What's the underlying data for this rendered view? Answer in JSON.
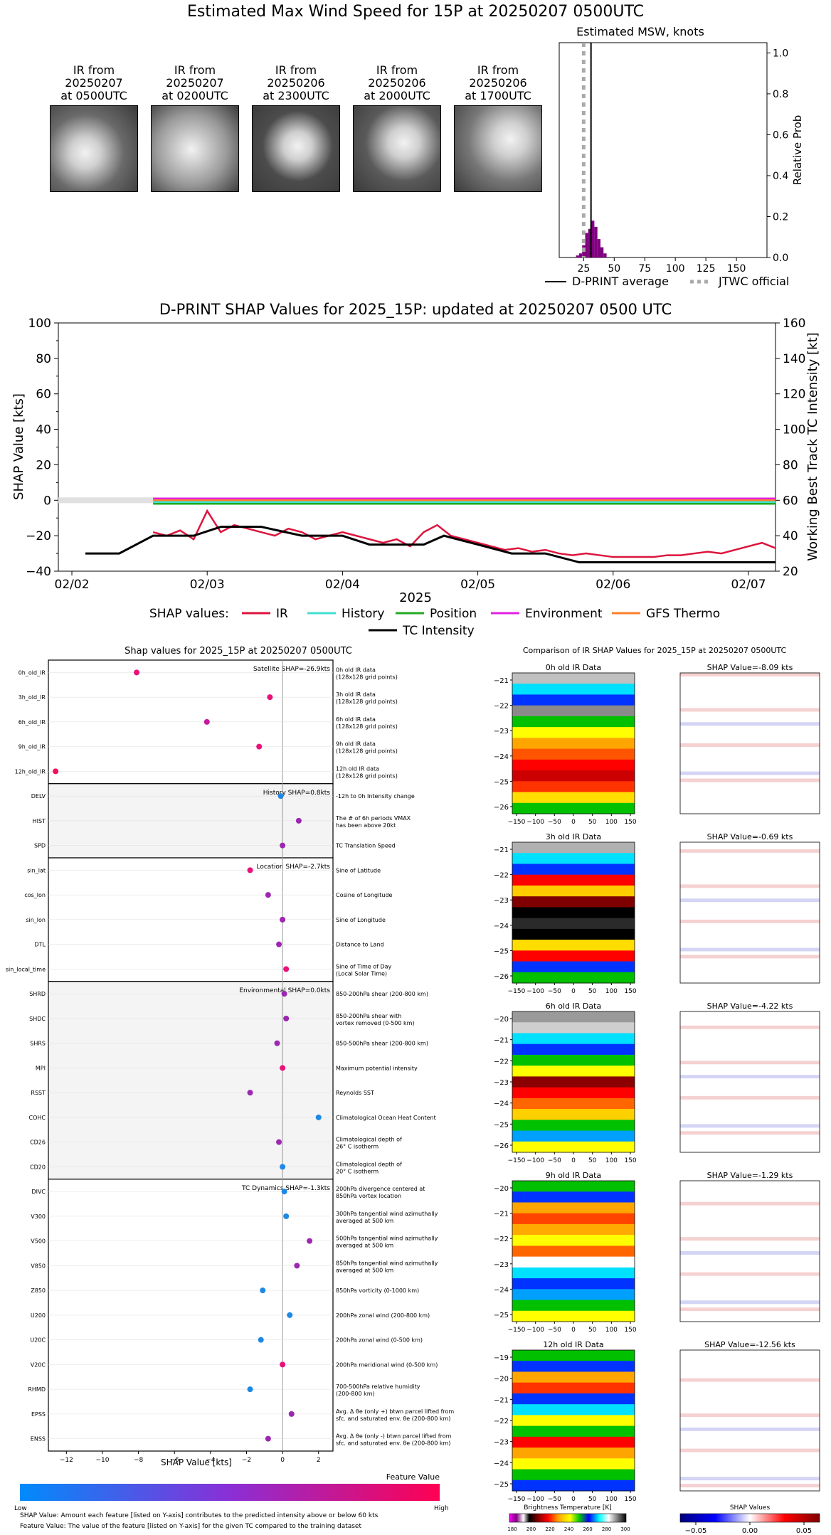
{
  "main_title": "Estimated Max Wind Speed for 15P at 20250207 0500UTC",
  "ir_thumbnails": [
    {
      "label": "IR from\n20250207\nat 0500UTC",
      "l1": "IR from",
      "l2": "20250207",
      "l3": "at 0500UTC"
    },
    {
      "l1": "IR from",
      "l2": "20250207",
      "l3": "at 0200UTC"
    },
    {
      "l1": "IR from",
      "l2": "20250206",
      "l3": "at 2300UTC"
    },
    {
      "l1": "IR from",
      "l2": "20250206",
      "l3": "at 2000UTC"
    },
    {
      "l1": "IR from",
      "l2": "20250206",
      "l3": "at 1700UTC"
    }
  ],
  "msw_hist": {
    "title": "Estimated MSW, knots",
    "ylabel": "Relative Prob",
    "xticks": [
      "25",
      "50",
      "75",
      "100",
      "125",
      "150"
    ],
    "yticks": [
      "0.0",
      "0.2",
      "0.4",
      "0.6",
      "0.8",
      "1.0"
    ],
    "legend_dprint": "D-PRINT average",
    "legend_jtwc": "JTWC official",
    "bar_color": "#800080"
  },
  "shap_ts": {
    "title": "D-PRINT SHAP Values for 2025_15P: updated at 20250207 0500 UTC",
    "ylabel_left": "SHAP Value [kts]",
    "ylabel_right": "Working Best Track TC Intensity [kt]",
    "xlabel": "2025",
    "xticks": [
      "02/02",
      "02/03",
      "02/04",
      "02/05",
      "02/06",
      "02/07"
    ],
    "yticks_left": [
      "100",
      "80",
      "60",
      "40",
      "20",
      "0",
      "−20",
      "−40"
    ],
    "yticks_right": [
      "160",
      "140",
      "120",
      "100",
      "80",
      "60",
      "40",
      "20"
    ],
    "legend_label": "SHAP values:",
    "legend": [
      {
        "name": "IR",
        "color": "#dc143c"
      },
      {
        "name": "History",
        "color": "#40e0d0"
      },
      {
        "name": "Position",
        "color": "#22aa22"
      },
      {
        "name": "Environment",
        "color": "#e020e0"
      },
      {
        "name": "GFS Thermo",
        "color": "#ff7f27"
      }
    ],
    "legend_intensity": "TC Intensity"
  },
  "beeswarm": {
    "title": "Shap values for 2025_15P at 20250207 0500UTC",
    "xlabel": "SHAP Value [kts]",
    "xticks": [
      "−12",
      "−10",
      "−8",
      "−6",
      "−4",
      "−2",
      "0",
      "2"
    ],
    "group_labels": [
      "Satellite SHAP=-26.9kts",
      "History SHAP=0.8kts",
      "Location SHAP=-2.7kts",
      "Environmental SHAP=0.0kts",
      "TC Dynamics SHAP=-1.3kts"
    ],
    "features": [
      {
        "name": "0h_old_IR",
        "desc1": "0h old IR data",
        "desc2": "(128x128 grid points)",
        "value": -8.1,
        "color": "#e8127a"
      },
      {
        "name": "3h_old_IR",
        "desc1": "3h old IR data",
        "desc2": "(128x128 grid points)",
        "value": -0.7,
        "color": "#e8127a"
      },
      {
        "name": "6h_old_IR",
        "desc1": "6h old IR data",
        "desc2": "(128x128 grid points)",
        "value": -4.2,
        "color": "#c81aa0"
      },
      {
        "name": "9h_old_IR",
        "desc1": "9h old IR data",
        "desc2": "(128x128 grid points)",
        "value": -1.3,
        "color": "#e8127a"
      },
      {
        "name": "12h_old_IR",
        "desc1": "12h old IR data",
        "desc2": "(128x128 grid points)",
        "value": -12.6,
        "color": "#f0105e"
      },
      {
        "name": "DELV",
        "desc1": "-12h to 0h Intensity change",
        "desc2": "",
        "value": -0.1,
        "color": "#1e88e5"
      },
      {
        "name": "HIST",
        "desc1": "The # of 6h periods VMAX",
        "desc2": "has been above 20kt",
        "value": 0.9,
        "color": "#9c27b0"
      },
      {
        "name": "SPD",
        "desc1": "TC Translation Speed",
        "desc2": "",
        "value": 0.0,
        "color": "#9c27b0"
      },
      {
        "name": "sin_lat",
        "desc1": "Sine of Latitude",
        "desc2": "",
        "value": -1.8,
        "color": "#e8127a"
      },
      {
        "name": "cos_lon",
        "desc1": "Cosine of Longitude",
        "desc2": "",
        "value": -0.8,
        "color": "#9c27b0"
      },
      {
        "name": "sin_lon",
        "desc1": "Sine of Longitude",
        "desc2": "",
        "value": 0.0,
        "color": "#9c27b0"
      },
      {
        "name": "DTL",
        "desc1": "Distance to Land",
        "desc2": "",
        "value": -0.2,
        "color": "#9c27b0"
      },
      {
        "name": "sin_local_time",
        "desc1": "Sine of Time of Day",
        "desc2": "(Local Solar Time)",
        "value": 0.2,
        "color": "#e8127a"
      },
      {
        "name": "SHRD",
        "desc1": "850-200hPa shear (200-800 km)",
        "desc2": "",
        "value": 0.1,
        "color": "#9c27b0"
      },
      {
        "name": "SHDC",
        "desc1": "850-200hPa shear with",
        "desc2": "vortex removed (0-500 km)",
        "value": 0.2,
        "color": "#9c27b0"
      },
      {
        "name": "SHRS",
        "desc1": "850-500hPa shear (200-800 km)",
        "desc2": "",
        "value": -0.3,
        "color": "#9c27b0"
      },
      {
        "name": "MPI",
        "desc1": "Maximum potential intensity",
        "desc2": "",
        "value": 0.0,
        "color": "#e8127a"
      },
      {
        "name": "RSST",
        "desc1": "Reynolds SST",
        "desc2": "",
        "value": -1.8,
        "color": "#9c27b0"
      },
      {
        "name": "COHC",
        "desc1": "Climatological Ocean Heat Content",
        "desc2": "",
        "value": 2.0,
        "color": "#1e88e5"
      },
      {
        "name": "CD26",
        "desc1": "Climatological depth of",
        "desc2": "26° C isotherm",
        "value": -0.2,
        "color": "#9c27b0"
      },
      {
        "name": "CD20",
        "desc1": "Climatological depth of",
        "desc2": "20° C isotherm",
        "value": 0.0,
        "color": "#1e88e5"
      },
      {
        "name": "DIVC",
        "desc1": "200hPa divergence centered at",
        "desc2": "850hPa vortex location",
        "value": 0.1,
        "color": "#1e88e5"
      },
      {
        "name": "V300",
        "desc1": "300hPa tangential wind azimuthally",
        "desc2": "averaged at 500 km",
        "value": 0.2,
        "color": "#1e88e5"
      },
      {
        "name": "V500",
        "desc1": "500hPa tangential wind azimuthally",
        "desc2": "averaged at 500 km",
        "value": 1.5,
        "color": "#9c27b0"
      },
      {
        "name": "V850",
        "desc1": "850hPa tangential wind azimuthally",
        "desc2": "averaged at 500 km",
        "value": 0.8,
        "color": "#9c27b0"
      },
      {
        "name": "Z850",
        "desc1": "850hPa vorticity (0-1000 km)",
        "desc2": "",
        "value": -1.1,
        "color": "#1e88e5"
      },
      {
        "name": "U200",
        "desc1": "200hPa zonal wind (200-800 km)",
        "desc2": "",
        "value": 0.4,
        "color": "#1e88e5"
      },
      {
        "name": "U20C",
        "desc1": "200hPa zonal wind (0-500 km)",
        "desc2": "",
        "value": -1.2,
        "color": "#1e88e5"
      },
      {
        "name": "V20C",
        "desc1": "200hPa meridional wind (0-500 km)",
        "desc2": "",
        "value": 0.0,
        "color": "#e8127a"
      },
      {
        "name": "RHMD",
        "desc1": "700-500hPa relative humidity",
        "desc2": "(200-800 km)",
        "value": -1.8,
        "color": "#1e88e5"
      },
      {
        "name": "EPSS",
        "desc1": "Avg. Δ θe (only +) btwn parcel lifted from",
        "desc2": "sfc. and saturated env. θe (200-800 km)",
        "value": 0.5,
        "color": "#9c27b0"
      },
      {
        "name": "ENSS",
        "desc1": "Avg. Δ θe (only -) btwn parcel lifted from",
        "desc2": "sfc. and saturated env. θe (200-800 km)",
        "value": -0.8,
        "color": "#9c27b0"
      }
    ],
    "colorbar_title": "Feature Value",
    "colorbar_low": "Low",
    "colorbar_high": "High",
    "footnote1": "SHAP Value: Amount each feature [listed on Y-axis] contributes to the predicted intensity above or below 60 kts",
    "footnote2": "Feature Value: The value of the feature [listed on Y-axis] for the given TC compared to the training dataset"
  },
  "ir_compare": {
    "title": "Comparison of IR SHAP Values for 2025_15P at 20250207 0500UTC",
    "xticks": [
      "−150",
      "−100",
      "−50",
      "0",
      "50",
      "100",
      "150"
    ],
    "panels": [
      {
        "label": "0h old IR Data",
        "shap": "SHAP Value=-8.09 kts",
        "yticks": [
          "−21",
          "−22",
          "−23",
          "−24",
          "−25",
          "−26"
        ]
      },
      {
        "label": "3h old IR Data",
        "shap": "SHAP Value=-0.69 kts",
        "yticks": [
          "−21",
          "−22",
          "−23",
          "−24",
          "−25",
          "−26"
        ]
      },
      {
        "label": "6h old IR Data",
        "shap": "SHAP Value=-4.22 kts",
        "yticks": [
          "−20",
          "−21",
          "−22",
          "−23",
          "−24",
          "−25",
          "−26"
        ]
      },
      {
        "label": "9h old IR Data",
        "shap": "SHAP Value=-1.29 kts",
        "yticks": [
          "−20",
          "−21",
          "−22",
          "−23",
          "−24",
          "−25"
        ]
      },
      {
        "label": "12h old IR Data",
        "shap": "SHAP Value=-12.56 kts",
        "yticks": [
          "−19",
          "−20",
          "−21",
          "−22",
          "−23",
          "−24",
          "−25"
        ]
      }
    ],
    "bt_title": "Brightness Temperature [K]",
    "bt_ticks": [
      "180",
      "200",
      "220",
      "240",
      "260",
      "280",
      "300"
    ],
    "shap_cb_title": "SHAP Values",
    "shap_cb_ticks": [
      "−0.05",
      "0.00",
      "0.05"
    ]
  },
  "chart_data": [
    {
      "type": "bar",
      "title": "Estimated MSW, knots",
      "ylabel": "Relative Prob",
      "xlim": [
        5,
        175
      ],
      "ylim": [
        0,
        1.05
      ],
      "x": [
        20,
        22.5,
        25,
        27.5,
        30,
        32.5,
        35,
        37.5,
        40,
        42.5
      ],
      "values": [
        0.01,
        0.02,
        0.06,
        0.12,
        0.14,
        0.18,
        0.15,
        0.09,
        0.05,
        0.02
      ],
      "dprint_average": 31,
      "jtwc_official": 25
    },
    {
      "type": "line",
      "title": "D-PRINT SHAP Values for 2025_15P: updated at 20250207 0500 UTC",
      "xlabel": "2025",
      "ylabel": "SHAP Value [kts]",
      "ylabel_right": "Working Best Track TC Intensity [kt]",
      "x_dates": [
        "02/02",
        "02/03",
        "02/04",
        "02/05",
        "02/06",
        "02/07"
      ],
      "ylim": [
        -40,
        100
      ],
      "ylim_right": [
        20,
        160
      ],
      "series": [
        {
          "name": "IR",
          "x_day": [
            2.6,
            2.7,
            2.8,
            2.9,
            3.0,
            3.1,
            3.2,
            3.3,
            3.4,
            3.5,
            3.6,
            3.7,
            3.8,
            3.9,
            4.0,
            4.1,
            4.2,
            4.3,
            4.4,
            4.5,
            4.6,
            4.7,
            4.8,
            4.9,
            5.0,
            5.1,
            5.2,
            5.3,
            5.4,
            5.5,
            5.6,
            5.7,
            5.8,
            5.9,
            6.0,
            6.1,
            6.2,
            6.3,
            6.4,
            6.5,
            6.6,
            6.7,
            6.8,
            6.9,
            7.0,
            7.1,
            7.2
          ],
          "values": [
            -18,
            -20,
            -17,
            -22,
            -6,
            -18,
            -14,
            -16,
            -18,
            -20,
            -16,
            -18,
            -22,
            -20,
            -18,
            -20,
            -22,
            -24,
            -22,
            -26,
            -18,
            -14,
            -20,
            -22,
            -24,
            -26,
            -28,
            -27,
            -29,
            -28,
            -30,
            -31,
            -30,
            -31,
            -32,
            -32,
            -32,
            -32,
            -31,
            -31,
            -30,
            -29,
            -30,
            -28,
            -26,
            -24,
            -27
          ]
        },
        {
          "name": "History",
          "x_day": [
            2.6,
            7.2
          ],
          "values": [
            -1,
            -1
          ]
        },
        {
          "name": "Position",
          "x_day": [
            2.6,
            7.2
          ],
          "values": [
            -2,
            -2
          ]
        },
        {
          "name": "Environment",
          "x_day": [
            2.6,
            7.2
          ],
          "values": [
            1,
            1
          ]
        },
        {
          "name": "GFS Thermo",
          "x_day": [
            2.6,
            7.2
          ],
          "values": [
            0,
            0
          ]
        },
        {
          "name": "TC Intensity",
          "axis": "right",
          "x_day": [
            2.1,
            2.35,
            2.6,
            2.9,
            3.1,
            3.4,
            3.7,
            4.0,
            4.2,
            4.4,
            4.6,
            4.75,
            5.0,
            5.25,
            5.5,
            5.75,
            6.0,
            6.5,
            7.0,
            7.2
          ],
          "values": [
            30,
            30,
            40,
            40,
            45,
            45,
            40,
            40,
            35,
            35,
            35,
            40,
            35,
            30,
            30,
            25,
            25,
            25,
            25,
            25
          ]
        }
      ]
    }
  ]
}
